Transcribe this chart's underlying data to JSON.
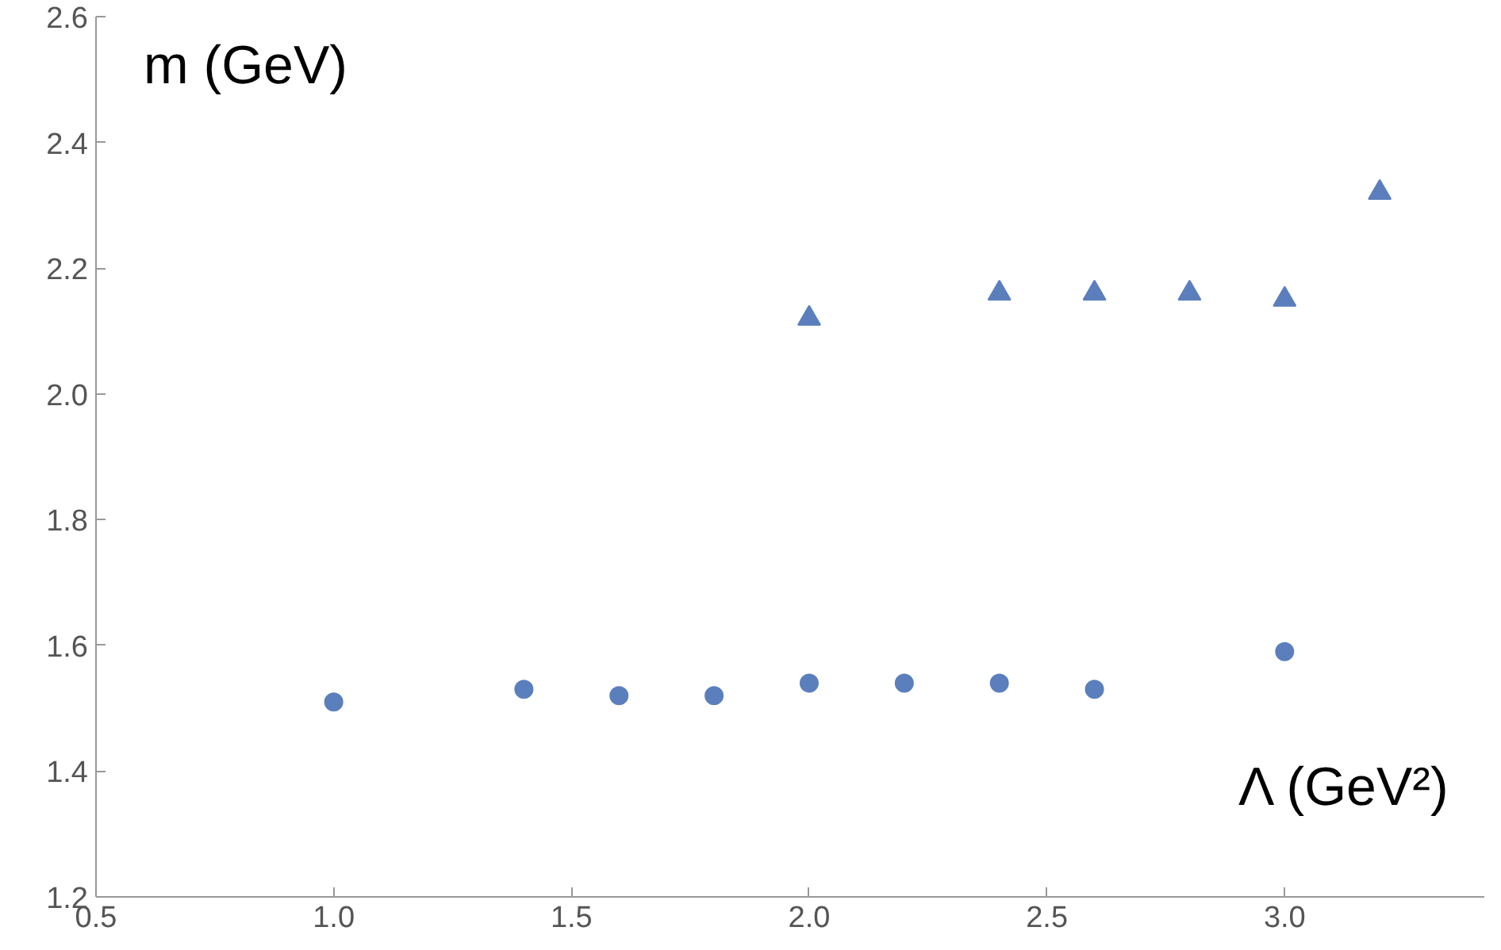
{
  "chart_data": {
    "type": "scatter",
    "xlabel": "Λ (GeV²)",
    "ylabel": "m (GeV)",
    "series": [
      {
        "marker": "circle",
        "color": "#5b7fbd",
        "x": [
          1.0,
          1.4,
          1.6,
          1.8,
          2.0,
          2.2,
          2.4,
          2.6,
          3.0
        ],
        "values": [
          1.51,
          1.53,
          1.52,
          1.52,
          1.54,
          1.54,
          1.54,
          1.53,
          1.59
        ]
      },
      {
        "marker": "triangle",
        "color": "#5b7fbd",
        "x": [
          2.0,
          2.4,
          2.6,
          2.8,
          3.0,
          3.2
        ],
        "values": [
          2.12,
          2.16,
          2.16,
          2.16,
          2.15,
          2.32
        ]
      }
    ],
    "xlim": [
      0.5,
      3.42
    ],
    "ylim": [
      1.2,
      2.6
    ],
    "xticks": [
      {
        "value": 0.5,
        "label": "0.5"
      },
      {
        "value": 1.0,
        "label": "1.0"
      },
      {
        "value": 1.5,
        "label": "1.5"
      },
      {
        "value": 2.0,
        "label": "2.0"
      },
      {
        "value": 2.5,
        "label": "2.5"
      },
      {
        "value": 3.0,
        "label": "3.0"
      }
    ],
    "yticks": [
      {
        "value": 1.2,
        "label": "1.2"
      },
      {
        "value": 1.4,
        "label": "1.4"
      },
      {
        "value": 1.6,
        "label": "1.6"
      },
      {
        "value": 1.8,
        "label": "1.8"
      },
      {
        "value": 2.0,
        "label": "2.0"
      },
      {
        "value": 2.2,
        "label": "2.2"
      },
      {
        "value": 2.4,
        "label": "2.4"
      },
      {
        "value": 2.6,
        "label": "2.6"
      }
    ],
    "grid": false
  }
}
